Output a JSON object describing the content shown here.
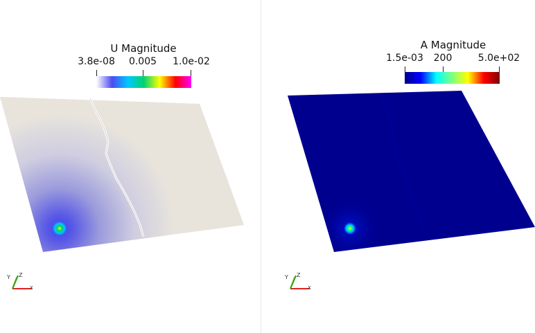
{
  "left_view": {
    "colorbar": {
      "title": "U Magnitude",
      "min_label": "3.8e-08",
      "mid_label": "0.005",
      "max_label": "1.0e-02",
      "colors": [
        "#ffffff",
        "#4b4bf0",
        "#00c8ff",
        "#00d26e",
        "#ffff00",
        "#ff0000",
        "#ff00ff"
      ]
    },
    "surface_color": "#e8e4dc",
    "field_color": "#5a5ae8"
  },
  "right_view": {
    "colorbar": {
      "title": "A Magnitude",
      "min_label": "1.5e-03",
      "mid_label": "200",
      "max_label": "5.0e+02",
      "colors": [
        "#00008c",
        "#0000ff",
        "#00ffff",
        "#7fff7f",
        "#ffff00",
        "#ff0000",
        "#800000"
      ]
    },
    "surface_color": "#00008f"
  },
  "axes": {
    "x": "X",
    "y": "Y",
    "z": "Z"
  }
}
